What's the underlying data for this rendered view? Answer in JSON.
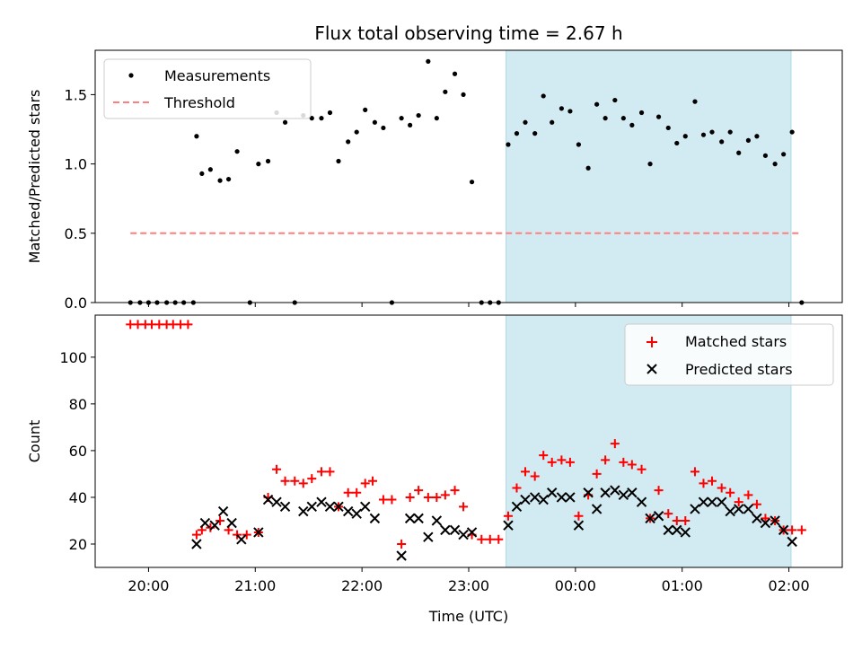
{
  "chart_data": [
    {
      "type": "scatter",
      "title": "Flux total observing time = 2.67 h",
      "xlabel": "",
      "ylabel": "Matched/Predicted stars",
      "x_unit": "hours (UTC clock, values past 24 are after midnight)",
      "xlim": [
        19.5,
        26.5
      ],
      "ylim": [
        0,
        1.82
      ],
      "yticks": [
        0.0,
        0.5,
        1.0,
        1.5
      ],
      "ytick_labels": [
        "0.0",
        "0.5",
        "1.0",
        "1.5"
      ],
      "grid": false,
      "legend": "upper-left",
      "shaded_span": {
        "x0": 23.35,
        "x1": 26.02,
        "color": "#add8e6"
      },
      "series": [
        {
          "name": "Measurements",
          "marker": "dot",
          "color": "#000000",
          "x": [
            19.83,
            19.92,
            20.0,
            20.08,
            20.17,
            20.25,
            20.33,
            20.42,
            20.45,
            20.5,
            20.58,
            20.67,
            20.75,
            20.83,
            20.95,
            21.03,
            21.12,
            21.2,
            21.28,
            21.37,
            21.45,
            21.53,
            21.62,
            21.7,
            21.78,
            21.87,
            21.95,
            22.03,
            22.12,
            22.2,
            22.28,
            22.37,
            22.45,
            22.53,
            22.62,
            22.7,
            22.78,
            22.87,
            22.95,
            23.03,
            23.12,
            23.2,
            23.28,
            23.37,
            23.45,
            23.53,
            23.62,
            23.7,
            23.78,
            23.87,
            23.95,
            24.03,
            24.12,
            24.2,
            24.28,
            24.37,
            24.45,
            24.53,
            24.62,
            24.7,
            24.78,
            24.87,
            24.95,
            25.03,
            25.12,
            25.2,
            25.28,
            25.37,
            25.45,
            25.53,
            25.62,
            25.7,
            25.78,
            25.87,
            25.95,
            26.03,
            26.12
          ],
          "y": [
            0,
            0,
            0,
            0,
            0,
            0,
            0,
            0,
            1.2,
            0.93,
            0.96,
            0.88,
            0.89,
            1.09,
            0,
            1.0,
            1.02,
            1.37,
            1.3,
            0,
            1.35,
            1.33,
            1.33,
            1.37,
            1.02,
            1.16,
            1.23,
            1.39,
            1.3,
            1.26,
            0,
            1.33,
            1.28,
            1.35,
            1.74,
            1.33,
            1.52,
            1.65,
            1.5,
            0.87,
            0,
            0,
            0,
            1.14,
            1.22,
            1.3,
            1.22,
            1.49,
            1.3,
            1.4,
            1.38,
            1.14,
            0.97,
            1.43,
            1.33,
            1.46,
            1.33,
            1.28,
            1.37,
            1.0,
            1.34,
            1.26,
            1.15,
            1.2,
            1.45,
            1.21,
            1.23,
            1.16,
            1.23,
            1.08,
            1.17,
            1.2,
            1.06,
            1.0,
            1.07,
            1.23,
            0
          ]
        },
        {
          "name": "Threshold",
          "line": "dashed",
          "color": "#ff7f7f",
          "x": [
            19.83,
            26.12
          ],
          "y": [
            0.5,
            0.5
          ]
        }
      ]
    },
    {
      "type": "scatter",
      "title": "",
      "xlabel": "Time (UTC)",
      "ylabel": "Count",
      "xlim": [
        19.5,
        26.5
      ],
      "ylim": [
        10,
        118
      ],
      "yticks": [
        20,
        40,
        60,
        80,
        100
      ],
      "xticks": [
        20,
        21,
        22,
        23,
        24,
        25,
        26
      ],
      "xtick_labels": [
        "20:00",
        "21:00",
        "22:00",
        "23:00",
        "00:00",
        "01:00",
        "02:00"
      ],
      "grid": false,
      "legend": "upper-right",
      "shaded_span": {
        "x0": 23.35,
        "x1": 26.02,
        "color": "#add8e6"
      },
      "series": [
        {
          "name": "Matched stars",
          "marker": "plus",
          "color": "#ff0000",
          "x": [
            19.83,
            19.9,
            19.97,
            20.03,
            20.1,
            20.17,
            20.23,
            20.3,
            20.37,
            20.45,
            20.5,
            20.58,
            20.67,
            20.75,
            20.83,
            20.92,
            21.03,
            21.12,
            21.2,
            21.28,
            21.37,
            21.45,
            21.53,
            21.62,
            21.7,
            21.78,
            21.87,
            21.95,
            22.03,
            22.1,
            22.2,
            22.28,
            22.37,
            22.45,
            22.53,
            22.62,
            22.7,
            22.78,
            22.87,
            22.95,
            23.03,
            23.12,
            23.2,
            23.28,
            23.37,
            23.45,
            23.53,
            23.62,
            23.7,
            23.78,
            23.87,
            23.95,
            24.03,
            24.12,
            24.2,
            24.28,
            24.37,
            24.45,
            24.53,
            24.62,
            24.7,
            24.78,
            24.87,
            24.95,
            25.03,
            25.12,
            25.2,
            25.28,
            25.37,
            25.45,
            25.53,
            25.62,
            25.7,
            25.78,
            25.87,
            25.95,
            26.03,
            26.12
          ],
          "y": [
            114,
            114,
            114,
            114,
            114,
            114,
            114,
            114,
            114,
            24,
            26,
            27,
            30,
            26,
            24,
            24,
            25,
            40,
            52,
            47,
            47,
            46,
            48,
            51,
            51,
            36,
            42,
            42,
            46,
            47,
            39,
            39,
            20,
            40,
            43,
            40,
            40,
            41,
            43,
            36,
            24,
            22,
            22,
            22,
            32,
            44,
            51,
            49,
            58,
            55,
            56,
            55,
            32,
            41,
            50,
            56,
            63,
            55,
            54,
            52,
            31,
            43,
            33,
            30,
            30,
            51,
            46,
            47,
            44,
            42,
            38,
            41,
            37,
            31,
            30,
            26,
            26,
            26
          ]
        },
        {
          "name": "Predicted stars",
          "marker": "x",
          "color": "#000000",
          "x": [
            20.45,
            20.53,
            20.62,
            20.7,
            20.78,
            20.87,
            21.03,
            21.12,
            21.2,
            21.28,
            21.45,
            21.53,
            21.62,
            21.7,
            21.78,
            21.87,
            21.95,
            22.03,
            22.12,
            22.2,
            22.37,
            22.45,
            22.53,
            22.62,
            22.7,
            22.78,
            22.87,
            22.95,
            23.03,
            23.37,
            23.45,
            23.53,
            23.62,
            23.7,
            23.78,
            23.87,
            23.95,
            24.03,
            24.12,
            24.2,
            24.28,
            24.37,
            24.45,
            24.53,
            24.62,
            24.7,
            24.78,
            24.87,
            24.95,
            25.03,
            25.12,
            25.2,
            25.28,
            25.37,
            25.45,
            25.53,
            25.62,
            25.7,
            25.78,
            25.87,
            25.95,
            26.03
          ],
          "y": [
            20,
            29,
            28,
            34,
            29,
            22,
            25,
            39,
            38,
            36,
            34,
            36,
            38,
            36,
            36,
            34,
            33,
            36,
            31,
            null,
            15,
            31,
            31,
            23,
            30,
            26,
            26,
            24,
            25,
            28,
            36,
            39,
            40,
            39,
            42,
            40,
            40,
            28,
            42,
            35,
            42,
            43,
            41,
            42,
            38,
            31,
            32,
            26,
            26,
            25,
            35,
            38,
            38,
            38,
            34,
            35,
            35,
            31,
            29,
            30,
            26,
            21
          ]
        }
      ]
    }
  ]
}
